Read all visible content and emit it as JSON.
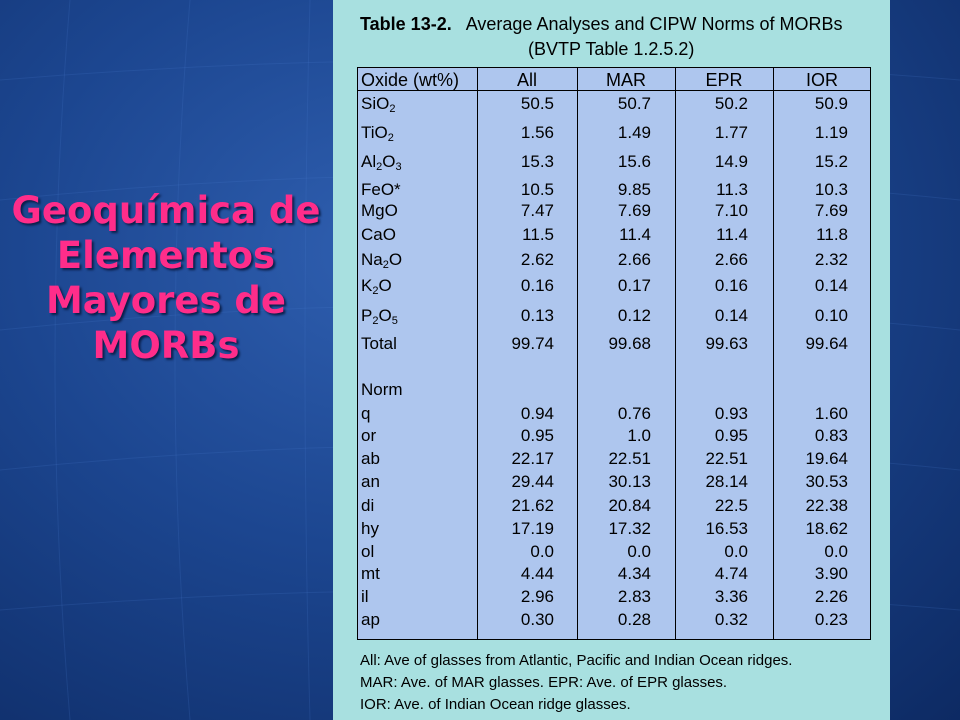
{
  "slide_title": [
    "Geoquímica de",
    "Elementos",
    "Mayores de",
    "MORBs"
  ],
  "table_caption": {
    "number": "Table 13-2.",
    "text": "Average Analyses and CIPW Norms of MORBs",
    "subtitle": "(BVTP Table 1.2.5.2)"
  },
  "table": {
    "headers": [
      "Oxide (wt%)",
      "All",
      "MAR",
      "EPR",
      "IOR"
    ],
    "oxide_rows": [
      {
        "label": "SiO",
        "sub": "2",
        "label2": "",
        "sub2": "",
        "values": [
          "50.5",
          "50.7",
          "50.2",
          "50.9"
        ]
      },
      {
        "label": "TiO",
        "sub": "2",
        "label2": "",
        "sub2": "",
        "values": [
          "1.56",
          "1.49",
          "1.77",
          "1.19"
        ]
      },
      {
        "label": "Al",
        "sub": "2",
        "label2": "O",
        "sub2": "3",
        "values": [
          "15.3",
          "15.6",
          "14.9",
          "15.2"
        ]
      },
      {
        "label": "FeO*",
        "sub": "",
        "label2": "",
        "sub2": "",
        "values": [
          "10.5",
          "9.85",
          "11.3",
          "10.3"
        ]
      },
      {
        "label": "MgO",
        "sub": "",
        "label2": "",
        "sub2": "",
        "values": [
          "7.47",
          "7.69",
          "7.10",
          "7.69"
        ]
      },
      {
        "label": "CaO",
        "sub": "",
        "label2": "",
        "sub2": "",
        "values": [
          "11.5",
          "11.4",
          "11.4",
          "11.8"
        ]
      },
      {
        "label": "Na",
        "sub": "2",
        "label2": "O",
        "sub2": "",
        "values": [
          "2.62",
          "2.66",
          "2.66",
          "2.32"
        ]
      },
      {
        "label": "K",
        "sub": "2",
        "label2": "O",
        "sub2": "",
        "values": [
          "0.16",
          "0.17",
          "0.16",
          "0.14"
        ]
      },
      {
        "label": "P",
        "sub": "2",
        "label2": "O",
        "sub2": "5",
        "values": [
          "0.13",
          "0.12",
          "0.14",
          "0.10"
        ]
      },
      {
        "label": "Total",
        "sub": "",
        "label2": "",
        "sub2": "",
        "values": [
          "99.74",
          "99.68",
          "99.63",
          "99.64"
        ]
      }
    ],
    "norm_header": "Norm",
    "norm_rows": [
      {
        "label": "q",
        "values": [
          "0.94",
          "0.76",
          "0.93",
          "1.60"
        ]
      },
      {
        "label": "or",
        "values": [
          "0.95",
          "1.0",
          "0.95",
          "0.83"
        ]
      },
      {
        "label": "ab",
        "values": [
          "22.17",
          "22.51",
          "22.51",
          "19.64"
        ]
      },
      {
        "label": "an",
        "values": [
          "29.44",
          "30.13",
          "28.14",
          "30.53"
        ]
      },
      {
        "label": "di",
        "values": [
          "21.62",
          "20.84",
          "22.5",
          "22.38"
        ]
      },
      {
        "label": "hy",
        "values": [
          "17.19",
          "17.32",
          "16.53",
          "18.62"
        ]
      },
      {
        "label": "ol",
        "values": [
          "0.0",
          "0.0",
          "0.0",
          "0.0"
        ]
      },
      {
        "label": "mt",
        "values": [
          "4.44",
          "4.34",
          "4.74",
          "3.90"
        ]
      },
      {
        "label": "il",
        "values": [
          "2.96",
          "2.83",
          "3.36",
          "2.26"
        ]
      },
      {
        "label": "ap",
        "values": [
          "0.30",
          "0.28",
          "0.32",
          "0.23"
        ]
      }
    ]
  },
  "notes": [
    "All:  Ave of glasses from Atlantic, Pacific and Indian Ocean ridges.",
    "MAR:  Ave. of MAR glasses.  EPR:  Ave. of EPR glasses.",
    "IOR:  Ave. of Indian Ocean ridge glasses."
  ],
  "colors": {
    "background": "#1c4690",
    "title": "#ff2d8a",
    "panel": "#a8e0e0",
    "table": "#aec6ee"
  }
}
